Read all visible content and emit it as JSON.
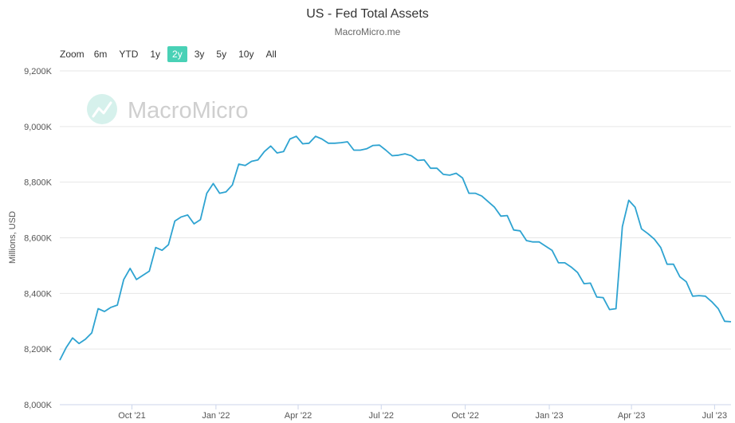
{
  "header": {
    "title": "US - Fed Total Assets",
    "subtitle": "MacroMicro.me"
  },
  "zoom": {
    "label": "Zoom",
    "options": [
      "6m",
      "YTD",
      "1y",
      "2y",
      "3y",
      "5y",
      "10y",
      "All"
    ],
    "active": "2y"
  },
  "watermark": {
    "text": "MacroMicro"
  },
  "colors": {
    "line": "#2ea3d1",
    "accent": "#49d1b6",
    "grid": "#e6e6e6"
  },
  "chart_data": {
    "type": "line",
    "title": "US - Fed Total Assets",
    "subtitle": "MacroMicro.me",
    "xlabel": "",
    "ylabel": "Millions, USD",
    "y_unit": "Millions, USD",
    "y_ticks": [
      "8,000K",
      "8,200K",
      "8,400K",
      "8,600K",
      "8,800K",
      "9,000K",
      "9,200K"
    ],
    "y_tick_values": [
      8000,
      8200,
      8400,
      8600,
      8800,
      9000,
      9200
    ],
    "ylim": [
      8000,
      9200
    ],
    "x_ticks": [
      "Oct '21",
      "Jan '22",
      "Apr '22",
      "Jul '22",
      "Oct '22",
      "Jan '23",
      "Apr '23",
      "Jul '23"
    ],
    "x_tick_dates": [
      "2021-10-01",
      "2022-01-01",
      "2022-04-01",
      "2022-07-01",
      "2022-10-01",
      "2023-01-01",
      "2023-04-01",
      "2023-07-01"
    ],
    "xlim": [
      "2021-07-14",
      "2023-07-19"
    ],
    "grid": true,
    "legend": "none",
    "series": [
      {
        "x": [
          "2021-07-14",
          "2021-07-21",
          "2021-07-28",
          "2021-08-04",
          "2021-08-11",
          "2021-08-18",
          "2021-08-25",
          "2021-09-01",
          "2021-09-08",
          "2021-09-15",
          "2021-09-22",
          "2021-09-29",
          "2021-10-06",
          "2021-10-13",
          "2021-10-20",
          "2021-10-27",
          "2021-11-03",
          "2021-11-10",
          "2021-11-17",
          "2021-11-24",
          "2021-12-01",
          "2021-12-08",
          "2021-12-15",
          "2021-12-22",
          "2021-12-29",
          "2022-01-05",
          "2022-01-12",
          "2022-01-19",
          "2022-01-26",
          "2022-02-02",
          "2022-02-09",
          "2022-02-16",
          "2022-02-23",
          "2022-03-02",
          "2022-03-09",
          "2022-03-16",
          "2022-03-23",
          "2022-03-30",
          "2022-04-06",
          "2022-04-13",
          "2022-04-20",
          "2022-04-27",
          "2022-05-04",
          "2022-05-11",
          "2022-05-18",
          "2022-05-25",
          "2022-06-01",
          "2022-06-08",
          "2022-06-15",
          "2022-06-22",
          "2022-06-29",
          "2022-07-06",
          "2022-07-13",
          "2022-07-20",
          "2022-07-27",
          "2022-08-03",
          "2022-08-10",
          "2022-08-17",
          "2022-08-24",
          "2022-08-31",
          "2022-09-07",
          "2022-09-14",
          "2022-09-21",
          "2022-09-28",
          "2022-10-05",
          "2022-10-12",
          "2022-10-19",
          "2022-10-26",
          "2022-11-02",
          "2022-11-09",
          "2022-11-16",
          "2022-11-23",
          "2022-11-30",
          "2022-12-07",
          "2022-12-14",
          "2022-12-21",
          "2022-12-28",
          "2023-01-04",
          "2023-01-11",
          "2023-01-18",
          "2023-01-25",
          "2023-02-01",
          "2023-02-08",
          "2023-02-15",
          "2023-02-22",
          "2023-03-01",
          "2023-03-08",
          "2023-03-15",
          "2023-03-22",
          "2023-03-29",
          "2023-04-05",
          "2023-04-12",
          "2023-04-19",
          "2023-04-26",
          "2023-05-03",
          "2023-05-10",
          "2023-05-17",
          "2023-05-24",
          "2023-05-31",
          "2023-06-07",
          "2023-06-14",
          "2023-06-21",
          "2023-06-28",
          "2023-07-05",
          "2023-07-12",
          "2023-07-19"
        ],
        "values": [
          8160,
          8205,
          8240,
          8220,
          8235,
          8258,
          8345,
          8335,
          8350,
          8358,
          8450,
          8490,
          8450,
          8465,
          8480,
          8565,
          8555,
          8575,
          8660,
          8675,
          8682,
          8650,
          8665,
          8760,
          8795,
          8760,
          8765,
          8790,
          8865,
          8860,
          8875,
          8880,
          8910,
          8930,
          8905,
          8910,
          8955,
          8965,
          8938,
          8940,
          8965,
          8955,
          8940,
          8940,
          8942,
          8945,
          8915,
          8915,
          8920,
          8932,
          8933,
          8915,
          8895,
          8897,
          8902,
          8895,
          8878,
          8880,
          8850,
          8850,
          8828,
          8825,
          8832,
          8815,
          8760,
          8760,
          8750,
          8730,
          8710,
          8678,
          8680,
          8628,
          8625,
          8590,
          8585,
          8585,
          8570,
          8555,
          8510,
          8510,
          8495,
          8475,
          8435,
          8437,
          8387,
          8385,
          8342,
          8345,
          8640,
          8735,
          8710,
          8632,
          8615,
          8595,
          8565,
          8505,
          8505,
          8460,
          8442,
          8390,
          8392,
          8390,
          8370,
          8345,
          8300,
          8298
        ]
      }
    ]
  }
}
